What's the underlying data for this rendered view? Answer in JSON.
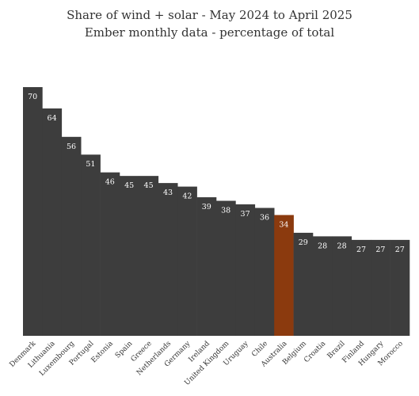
{
  "chart_data": {
    "type": "bar",
    "title": "Share of wind + solar - May 2024 to April 2025",
    "subtitle": "Ember monthly data - percentage of total",
    "xlabel": "",
    "ylabel": "",
    "ylim": [
      0,
      70
    ],
    "grid": false,
    "legend": "none",
    "categories": [
      "Denmark",
      "Lithuania",
      "Luxembourg",
      "Portugal",
      "Estonia",
      "Spain",
      "Greece",
      "Netherlands",
      "Germany",
      "Ireland",
      "United Kingdom",
      "Uruguay",
      "Chile",
      "Australia",
      "Belgium",
      "Croatia",
      "Brazil",
      "Finland",
      "Hungary",
      "Morocco"
    ],
    "values": [
      70,
      64,
      56,
      51,
      46,
      45,
      45,
      43,
      42,
      39,
      38,
      37,
      36,
      34,
      29,
      28,
      28,
      27,
      27,
      27
    ],
    "bar_labels": [
      "70",
      "64",
      "56",
      "51",
      "46",
      "45",
      "45",
      "43",
      "42",
      "39",
      "38",
      "37",
      "36",
      "34",
      "29",
      "28",
      "28",
      "27",
      "27",
      "27"
    ],
    "colors": {
      "default": "#3d3d3d",
      "highlight": "#8b3a0e"
    },
    "highlight_category": "Australia"
  }
}
